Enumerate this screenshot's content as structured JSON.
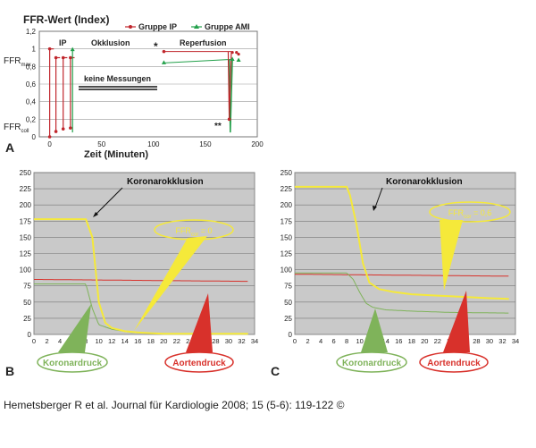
{
  "citation": "Hemetsberger R et al. Journal für Kardiologie 2008; 15 (5-6): 119-122 ©",
  "colors": {
    "ip": "#c0262c",
    "ami": "#22a04a",
    "aortic": "#d8312b",
    "coronary": "#7fb35a",
    "yellow": "#f5e93a",
    "panel_bg": "#c9c9c9"
  },
  "chart_data": [
    {
      "type": "line",
      "panel_label": "A",
      "title": "FFR-Wert (Index)",
      "xlabel": "Zeit (Minuten)",
      "ylabel": "",
      "xlim": [
        -10,
        200
      ],
      "ylim": [
        0,
        1.2
      ],
      "x_ticks": [
        "0",
        "50",
        "100",
        "150",
        "200"
      ],
      "y_ticks": [
        "0",
        "0,2",
        "0,4",
        "0,6",
        "0,8",
        "1",
        "1,2"
      ],
      "y_labels": {
        "max": "FFR",
        "max_sub": "max",
        "coll": "FFR",
        "coll_sub": "coll"
      },
      "legend": [
        "Gruppe IP",
        "Gruppe AMI"
      ],
      "legend_position": "top-right",
      "annotations": {
        "ip": "IP",
        "okklusion": "Okklusion",
        "keine_messungen": "keine Messungen",
        "star": "*",
        "reperfusion": "Reperfusion",
        "double_star": "**"
      },
      "series": [
        {
          "name": "Gruppe IP",
          "x": [
            0,
            0,
            1,
            2,
            3,
            3,
            4,
            5,
            6,
            7,
            8,
            9,
            10,
            11,
            12,
            13,
            14,
            15,
            16,
            17,
            18,
            19,
            20,
            21,
            22,
            23
          ],
          "y": [
            1,
            0,
            0.9,
            0.9,
            0.9,
            0.9,
            0.9,
            0.9,
            0.9,
            0.9,
            0.9,
            0.9,
            0.9,
            0.9,
            0.9,
            0.9,
            0.9,
            0.9,
            0.9,
            0.9,
            0.9,
            0.9,
            0.9,
            0.9,
            0.9,
            0.9
          ]
        },
        {
          "name": "Gruppe AMI",
          "x": [],
          "y": []
        }
      ],
      "ip_segments": {
        "pulses": [
          [
            0,
            1.0,
            0.0
          ],
          [
            6,
            0.9,
            0.06
          ],
          [
            13,
            0.9,
            0.09
          ],
          [
            20,
            0.9,
            0.1
          ]
        ],
        "reperfusion": {
          "x": [
            110,
            175
          ],
          "y": [
            0.97,
            0.97
          ]
        },
        "drop": [
          173,
          0.97,
          0.2
        ],
        "tail": [
          [
            176,
            0.96
          ],
          [
            180,
            0.96
          ],
          [
            182,
            0.94
          ]
        ]
      },
      "ami_segments": {
        "pulses": [
          [
            22,
            0.99,
            0.05
          ]
        ],
        "reperfusion": {
          "x": [
            110,
            175
          ],
          "y": [
            0.84,
            0.88
          ]
        },
        "drop": [
          174,
          0.88,
          0.05
        ],
        "tail": [
          [
            176,
            0.88
          ],
          [
            182,
            0.87
          ]
        ]
      }
    },
    {
      "type": "line",
      "panel_label": "B",
      "xlim": [
        0,
        34
      ],
      "ylim": [
        0,
        250
      ],
      "x_ticks": [
        0,
        2,
        4,
        6,
        8,
        10,
        12,
        14,
        16,
        18,
        20,
        22,
        24,
        26,
        28,
        30,
        32,
        34
      ],
      "y_ticks": [
        0,
        25,
        50,
        75,
        100,
        125,
        150,
        175,
        200,
        225,
        250
      ],
      "annotation": "Koronarokklusion",
      "ffr_label": "FFR",
      "ffr_sub": "cor",
      "ffr_value": " = 0",
      "legend_coronary": "Koronardruck",
      "legend_aortic": "Aortendruck",
      "series": [
        {
          "name": "ffr_trace",
          "x": [
            0,
            8,
            9,
            10,
            11,
            12,
            14,
            16,
            18,
            20,
            22,
            24,
            26,
            28,
            30,
            32,
            33
          ],
          "y": [
            178,
            178,
            150,
            50,
            18,
            10,
            5,
            3,
            2,
            1,
            1,
            1,
            1,
            1,
            1,
            1,
            1
          ]
        },
        {
          "name": "aortic_mean",
          "x": [
            0,
            33
          ],
          "y": [
            85,
            82
          ],
          "amp": 8
        },
        {
          "name": "coronary_mean",
          "x": [
            0,
            8,
            9,
            10,
            12,
            15,
            20,
            33
          ],
          "y": [
            78,
            78,
            40,
            15,
            8,
            3,
            1,
            1
          ],
          "amp": 10
        }
      ]
    },
    {
      "type": "line",
      "panel_label": "C",
      "xlim": [
        0,
        34
      ],
      "ylim": [
        0,
        250
      ],
      "x_ticks": [
        0,
        2,
        4,
        6,
        8,
        10,
        12,
        14,
        16,
        18,
        20,
        22,
        24,
        26,
        28,
        30,
        32,
        34
      ],
      "y_ticks": [
        0,
        25,
        50,
        75,
        100,
        125,
        150,
        175,
        200,
        225,
        250
      ],
      "annotation": "Koronarokklusion",
      "ffr_label": "FFR",
      "ffr_sub": "cor",
      "ffr_value": " = 0,6",
      "legend_coronary": "Koronardruck",
      "legend_aortic": "Aortendruck",
      "series": [
        {
          "name": "ffr_trace",
          "x": [
            0,
            8,
            8.5,
            9.5,
            10.5,
            11.5,
            13,
            15,
            18,
            22,
            26,
            30,
            33
          ],
          "y": [
            228,
            228,
            215,
            170,
            110,
            80,
            70,
            66,
            62,
            60,
            58,
            56,
            55
          ]
        },
        {
          "name": "aortic_mean",
          "x": [
            0,
            33
          ],
          "y": [
            93,
            90
          ],
          "amp": 9
        },
        {
          "name": "coronary_mean",
          "x": [
            0,
            8,
            9,
            10,
            11,
            12,
            14,
            18,
            24,
            33
          ],
          "y": [
            95,
            95,
            85,
            65,
            48,
            42,
            38,
            36,
            34,
            33
          ],
          "amp": 9
        }
      ]
    }
  ]
}
